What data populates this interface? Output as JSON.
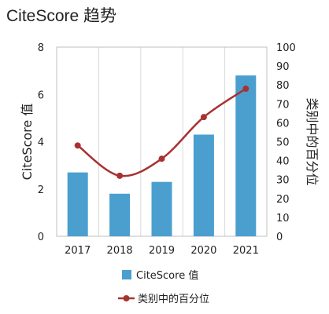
{
  "page": {
    "title": "CiteScore 趋势"
  },
  "colors": {
    "bar": "#4a9fcf",
    "line": "#a83232",
    "grid": "#d9d9d9",
    "frame": "#bfbfbf"
  },
  "chart_data": {
    "type": "bar",
    "title": "CiteScore 趋势",
    "categories": [
      "2017",
      "2018",
      "2019",
      "2020",
      "2021"
    ],
    "series": [
      {
        "name": "CiteScore 值",
        "type": "bar",
        "axis": "left",
        "values": [
          2.7,
          1.8,
          2.3,
          4.3,
          6.8
        ]
      },
      {
        "name": "类别中的百分位",
        "type": "line",
        "axis": "right",
        "values": [
          48,
          32,
          41,
          63,
          78
        ]
      }
    ],
    "ylabel": "CiteScore 值",
    "y2label": "类别中的百分位",
    "ylim": [
      0,
      8
    ],
    "y2lim": [
      0,
      100
    ],
    "yticks": [
      "0",
      "2",
      "4",
      "6",
      "8"
    ],
    "y2ticks": [
      "0",
      "10",
      "20",
      "30",
      "40",
      "50",
      "60",
      "70",
      "80",
      "90",
      "100"
    ],
    "grid": true,
    "legend_position": "bottom"
  }
}
